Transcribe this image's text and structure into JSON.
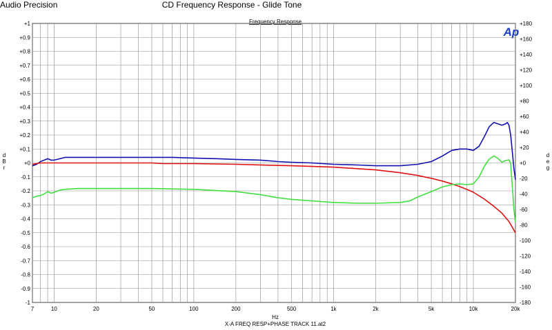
{
  "header": {
    "brand_left": "Audio Precision",
    "title": "CD Frequency Response - Glide Tone",
    "legend_title": "Frequency Response",
    "logo_text": "Ap"
  },
  "footer": {
    "file_name": "X-A FREQ RESP+PHASE TRACK 11.at2"
  },
  "chart_data": {
    "type": "line",
    "title": "CD Frequency Response - Glide Tone",
    "legend_title": "Frequency Response",
    "xlabel": "Hz",
    "ylabel_left": "dBr",
    "ylabel_right": "deg",
    "x_scale": "log",
    "xlim": [
      7,
      20000
    ],
    "ylim_left": [
      -1,
      1
    ],
    "ylim_right": [
      -180,
      180
    ],
    "grid": true,
    "x_ticks": [
      {
        "value": 7,
        "label": "7"
      },
      {
        "value": 10,
        "label": "10"
      },
      {
        "value": 20,
        "label": "20"
      },
      {
        "value": 50,
        "label": "50"
      },
      {
        "value": 100,
        "label": "100"
      },
      {
        "value": 200,
        "label": "200"
      },
      {
        "value": 500,
        "label": "500"
      },
      {
        "value": 1000,
        "label": "1k"
      },
      {
        "value": 2000,
        "label": "2k"
      },
      {
        "value": 5000,
        "label": "5k"
      },
      {
        "value": 10000,
        "label": "10k"
      },
      {
        "value": 20000,
        "label": "20k"
      }
    ],
    "y_ticks_left": [
      "+1",
      "+0.9",
      "+0.8",
      "+0.7",
      "+0.6",
      "+0.5",
      "+0.4",
      "+0.3",
      "+0.2",
      "+0.1",
      "+0",
      "-0.1",
      "-0.2",
      "-0.3",
      "-0.4",
      "-0.5",
      "-0.6",
      "-0.7",
      "-0.8",
      "-0.9",
      "-1"
    ],
    "y_ticks_right": [
      "+180",
      "+160",
      "+140",
      "+120",
      "+100",
      "+80",
      "+60",
      "+40",
      "+20",
      "+0",
      "-20",
      "-40",
      "-60",
      "-80",
      "-100",
      "-120",
      "-140",
      "-160",
      "-180"
    ],
    "series": [
      {
        "color": "#1010b0",
        "axis": "left",
        "points": [
          [
            7,
            -0.02
          ],
          [
            7.5,
            -0.01
          ],
          [
            8,
            0.01
          ],
          [
            8.5,
            0.02
          ],
          [
            9,
            0.03
          ],
          [
            9.5,
            0.02
          ],
          [
            10,
            0.02
          ],
          [
            11,
            0.03
          ],
          [
            12,
            0.04
          ],
          [
            15,
            0.04
          ],
          [
            20,
            0.04
          ],
          [
            30,
            0.04
          ],
          [
            50,
            0.04
          ],
          [
            70,
            0.04
          ],
          [
            100,
            0.035
          ],
          [
            150,
            0.03
          ],
          [
            200,
            0.025
          ],
          [
            300,
            0.02
          ],
          [
            400,
            0.01
          ],
          [
            500,
            0.005
          ],
          [
            700,
            0.0
          ],
          [
            1000,
            -0.01
          ],
          [
            1500,
            -0.015
          ],
          [
            2000,
            -0.02
          ],
          [
            3000,
            -0.02
          ],
          [
            4000,
            -0.01
          ],
          [
            5000,
            0.01
          ],
          [
            5500,
            0.03
          ],
          [
            6000,
            0.05
          ],
          [
            7000,
            0.09
          ],
          [
            8000,
            0.1
          ],
          [
            9000,
            0.1
          ],
          [
            10000,
            0.09
          ],
          [
            11000,
            0.12
          ],
          [
            12000,
            0.19
          ],
          [
            13000,
            0.26
          ],
          [
            14000,
            0.29
          ],
          [
            15000,
            0.28
          ],
          [
            16000,
            0.27
          ],
          [
            17000,
            0.28
          ],
          [
            17500,
            0.29
          ],
          [
            18000,
            0.27
          ],
          [
            18500,
            0.2
          ],
          [
            19000,
            0.08
          ],
          [
            19500,
            -0.04
          ],
          [
            20000,
            -0.12
          ]
        ]
      },
      {
        "color": "#e01010",
        "axis": "left",
        "points": [
          [
            7,
            -0.01
          ],
          [
            8,
            0.0
          ],
          [
            10,
            0.0
          ],
          [
            20,
            0.0
          ],
          [
            50,
            0.0
          ],
          [
            60,
            -0.005
          ],
          [
            100,
            -0.005
          ],
          [
            200,
            -0.01
          ],
          [
            500,
            -0.02
          ],
          [
            1000,
            -0.03
          ],
          [
            2000,
            -0.05
          ],
          [
            3000,
            -0.07
          ],
          [
            4000,
            -0.09
          ],
          [
            5000,
            -0.11
          ],
          [
            6000,
            -0.13
          ],
          [
            7000,
            -0.15
          ],
          [
            8000,
            -0.17
          ],
          [
            9000,
            -0.19
          ],
          [
            10000,
            -0.21
          ],
          [
            12000,
            -0.26
          ],
          [
            14000,
            -0.31
          ],
          [
            16000,
            -0.36
          ],
          [
            18000,
            -0.42
          ],
          [
            20000,
            -0.5
          ]
        ]
      },
      {
        "color": "#40e040",
        "axis": "right",
        "points": [
          [
            7,
            -45
          ],
          [
            7.5,
            -43
          ],
          [
            8,
            -42
          ],
          [
            8.5,
            -40
          ],
          [
            9,
            -37
          ],
          [
            9.5,
            -39
          ],
          [
            10,
            -38
          ],
          [
            11,
            -35
          ],
          [
            12,
            -34
          ],
          [
            15,
            -33
          ],
          [
            20,
            -33
          ],
          [
            30,
            -33
          ],
          [
            50,
            -33
          ],
          [
            100,
            -34
          ],
          [
            200,
            -37
          ],
          [
            300,
            -41
          ],
          [
            400,
            -45
          ],
          [
            500,
            -47
          ],
          [
            700,
            -49
          ],
          [
            1000,
            -51
          ],
          [
            1500,
            -52
          ],
          [
            2000,
            -52
          ],
          [
            3000,
            -51
          ],
          [
            3500,
            -49
          ],
          [
            4000,
            -44
          ],
          [
            5000,
            -37
          ],
          [
            6000,
            -31
          ],
          [
            7000,
            -28
          ],
          [
            8000,
            -27
          ],
          [
            9000,
            -28
          ],
          [
            10000,
            -27
          ],
          [
            11000,
            -18
          ],
          [
            12000,
            -4
          ],
          [
            13000,
            5
          ],
          [
            14000,
            9
          ],
          [
            15000,
            6
          ],
          [
            16000,
            1
          ],
          [
            17000,
            3
          ],
          [
            18000,
            4
          ],
          [
            18500,
            -1
          ],
          [
            19000,
            -30
          ],
          [
            19500,
            -60
          ],
          [
            20000,
            -77
          ]
        ]
      }
    ]
  }
}
